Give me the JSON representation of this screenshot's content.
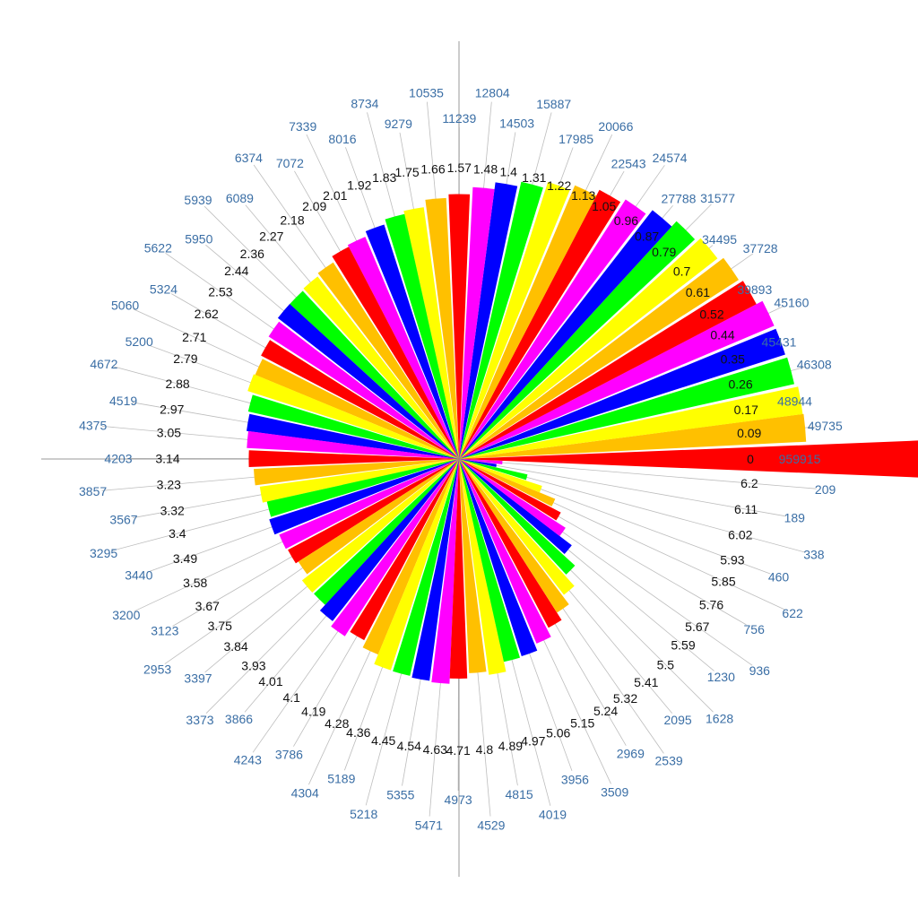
{
  "chart_data": {
    "type": "bar",
    "subtype": "polar-radial-bar",
    "x": [
      0,
      0.09,
      0.17,
      0.26,
      0.35,
      0.44,
      0.52,
      0.61,
      0.7,
      0.79,
      0.87,
      0.96,
      1.05,
      1.13,
      1.22,
      1.31,
      1.4,
      1.48,
      1.57,
      1.66,
      1.75,
      1.83,
      1.92,
      2.01,
      2.09,
      2.18,
      2.27,
      2.36,
      2.44,
      2.53,
      2.62,
      2.71,
      2.79,
      2.88,
      2.97,
      3.05,
      3.14,
      3.23,
      3.32,
      3.4,
      3.49,
      3.58,
      3.67,
      3.75,
      3.84,
      3.93,
      4.01,
      4.1,
      4.19,
      4.28,
      4.36,
      4.45,
      4.54,
      4.63,
      4.71,
      4.8,
      4.89,
      4.97,
      5.06,
      5.15,
      5.24,
      5.32,
      5.41,
      5.5,
      5.59,
      5.67,
      5.76,
      5.85,
      5.93,
      6.02,
      6.11,
      6.2
    ],
    "x_labels": [
      "0",
      "0.09",
      "0.17",
      "0.26",
      "0.35",
      "0.44",
      "0.52",
      "0.61",
      "0.7",
      "0.79",
      "0.87",
      "0.96",
      "1.05",
      "1.13",
      "1.22",
      "1.31",
      "1.4",
      "1.48",
      "1.57",
      "1.66",
      "1.75",
      "1.83",
      "1.92",
      "2.01",
      "2.09",
      "2.18",
      "2.27",
      "2.36",
      "2.44",
      "2.53",
      "2.62",
      "2.71",
      "2.79",
      "2.88",
      "2.97",
      "3.05",
      "3.14",
      "3.23",
      "3.32",
      "3.4",
      "3.49",
      "3.58",
      "3.67",
      "3.75",
      "3.84",
      "3.93",
      "4.01",
      "4.1",
      "4.19",
      "4.28",
      "4.36",
      "4.45",
      "4.54",
      "4.63",
      "4.71",
      "4.8",
      "4.89",
      "4.97",
      "5.06",
      "5.15",
      "5.24",
      "5.32",
      "5.41",
      "5.5",
      "5.59",
      "5.67",
      "5.76",
      "5.85",
      "5.93",
      "6.02",
      "6.11",
      "6.2"
    ],
    "values": [
      959915,
      49735,
      48944,
      46308,
      45431,
      45160,
      39893,
      37728,
      34495,
      31577,
      27788,
      24574,
      22543,
      20066,
      17985,
      15887,
      14503,
      12804,
      11239,
      10535,
      9279,
      8734,
      8016,
      7339,
      7072,
      6374,
      6089,
      5939,
      5950,
      5622,
      5324,
      5060,
      5200,
      4672,
      4519,
      4375,
      4203,
      3857,
      3567,
      3295,
      3440,
      3200,
      3123,
      2953,
      3397,
      3373,
      3866,
      4243,
      3786,
      4304,
      5189,
      5218,
      5355,
      5471,
      4973,
      4529,
      4815,
      4019,
      3956,
      3509,
      2969,
      2539,
      2095,
      1628,
      1230,
      936,
      756,
      622,
      460,
      338,
      189,
      209
    ],
    "value_labels": [
      "959915",
      "49735",
      "48944",
      "46308",
      "45431",
      "45160",
      "39893",
      "37728",
      "34495",
      "31577",
      "27788",
      "24574",
      "22543",
      "20066",
      "17985",
      "15887",
      "14503",
      "12804",
      "11239",
      "10535",
      "9279",
      "8734",
      "8016",
      "7339",
      "7072",
      "6374",
      "6089",
      "5939",
      "5950",
      "5622",
      "5324",
      "5060",
      "5200",
      "4672",
      "4519",
      "4375",
      "4203",
      "3857",
      "3567",
      "3295",
      "3440",
      "3200",
      "3123",
      "2953",
      "3397",
      "3373",
      "3866",
      "4243",
      "3786",
      "4304",
      "5189",
      "5218",
      "5355",
      "5471",
      "4973",
      "4529",
      "4815",
      "4019",
      "3956",
      "3509",
      "2969",
      "2539",
      "2095",
      "1628",
      "1230",
      "936",
      "756",
      "622",
      "460",
      "338",
      "189",
      "209"
    ],
    "angle_unit": "radians",
    "direction": "counterclockwise",
    "zero_direction": "east",
    "radial_scale": "log",
    "color_cycle": [
      "#ff0000",
      "#ffc000",
      "#ffff00",
      "#00ff00",
      "#0000ff",
      "#ff00ff"
    ],
    "axis_color": "#9a9a9a",
    "spoke_color": "#bdbdbd",
    "angle_label_color": "#111111",
    "value_label_color": "#3a6ea5",
    "grid": true,
    "legend": "none",
    "title": "",
    "xlabel": "",
    "ylabel": ""
  }
}
